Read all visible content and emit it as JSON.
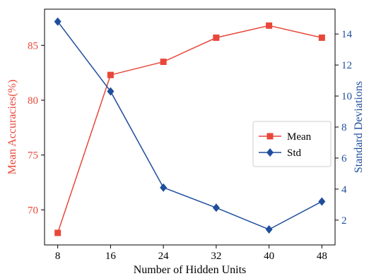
{
  "chart_data": {
    "type": "line",
    "x": [
      8,
      16,
      24,
      32,
      40,
      48
    ],
    "xlabel": "Number of Hidden Units",
    "xlim": [
      6,
      50
    ],
    "xticks": [
      "8",
      "16",
      "24",
      "32",
      "40",
      "48"
    ],
    "grid": false,
    "legend_position": "right",
    "series": [
      {
        "name": "Mean",
        "axis": "left",
        "color": "#e8473a",
        "marker": "square",
        "values": [
          67.9,
          82.3,
          83.5,
          85.7,
          86.8,
          85.7
        ]
      },
      {
        "name": "Std",
        "axis": "right",
        "color": "#1f4e9c",
        "marker": "diamond",
        "values": [
          14.8,
          10.3,
          4.1,
          2.8,
          1.4,
          3.2
        ]
      }
    ],
    "left_axis": {
      "label": "Mean Accuracies(%)",
      "color": "#e8473a",
      "ylim": [
        66.8,
        88.3
      ],
      "ticks": [
        "70",
        "75",
        "80",
        "85"
      ]
    },
    "right_axis": {
      "label": "Standard Deviations",
      "color": "#1f4e9c",
      "ylim": [
        0.4,
        15.6
      ],
      "ticks": [
        "2",
        "4",
        "6",
        "8",
        "10",
        "12",
        "14"
      ]
    }
  }
}
